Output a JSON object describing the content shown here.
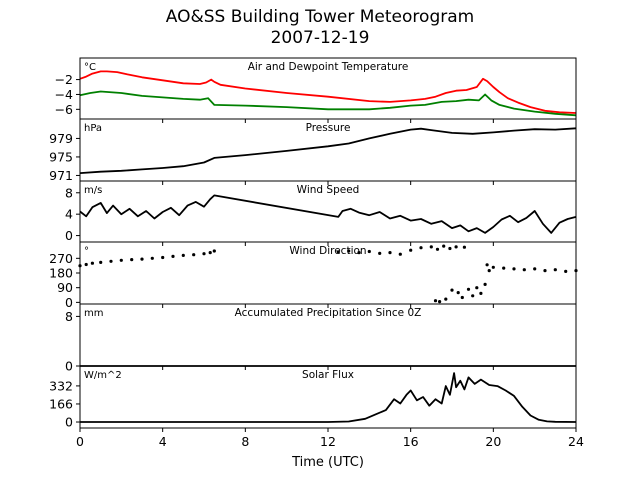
{
  "figure": {
    "title": "AO&SS Building Tower Meteorogram",
    "subtitle": "2007-12-19",
    "xlabel": "Time (UTC)"
  },
  "colors": {
    "air_temp": "#ff0000",
    "dewpoint": "#008000",
    "line": "#000000"
  },
  "chart_data": [
    {
      "type": "line",
      "title": "Air and Dewpoint Temperature",
      "ylabel": "°C",
      "xlim": [
        0,
        24
      ],
      "ylim": [
        -7.3,
        0.9
      ],
      "yticks": [
        -2,
        -4,
        -6
      ],
      "series": [
        {
          "color": "#ff0000",
          "x": [
            0,
            0.3,
            0.6,
            1.0,
            1.3,
            1.8,
            2.3,
            3,
            4,
            5,
            5.8,
            6.1,
            6.35,
            6.5,
            6.8,
            8,
            10,
            12,
            14,
            15,
            16,
            16.7,
            17.2,
            17.7,
            18.2,
            18.7,
            19.2,
            19.5,
            19.7,
            20.0,
            20.3,
            20.7,
            21.2,
            21.8,
            22.5,
            23.2,
            24
          ],
          "y": [
            -1.9,
            -1.6,
            -1.2,
            -0.9,
            -0.9,
            -1.0,
            -1.3,
            -1.7,
            -2.1,
            -2.5,
            -2.6,
            -2.4,
            -2.0,
            -2.3,
            -2.7,
            -3.2,
            -3.8,
            -4.3,
            -4.9,
            -5.0,
            -4.8,
            -4.6,
            -4.3,
            -3.8,
            -3.5,
            -3.4,
            -3.0,
            -1.9,
            -2.2,
            -3.0,
            -3.7,
            -4.5,
            -5.1,
            -5.7,
            -6.2,
            -6.4,
            -6.5
          ]
        },
        {
          "color": "#008000",
          "x": [
            0,
            0.5,
            1.0,
            2,
            3,
            4,
            5,
            5.8,
            6.2,
            6.5,
            8,
            10,
            12,
            14,
            15,
            16,
            16.7,
            17.5,
            18.2,
            18.8,
            19.3,
            19.6,
            19.9,
            20.3,
            21,
            22,
            23,
            24
          ],
          "y": [
            -4.1,
            -3.8,
            -3.6,
            -3.8,
            -4.2,
            -4.4,
            -4.6,
            -4.7,
            -4.5,
            -5.4,
            -5.5,
            -5.7,
            -6.0,
            -6.0,
            -5.8,
            -5.5,
            -5.4,
            -5.0,
            -4.9,
            -4.7,
            -4.8,
            -4.0,
            -4.8,
            -5.4,
            -5.9,
            -6.3,
            -6.6,
            -6.8
          ]
        }
      ]
    },
    {
      "type": "line",
      "title": "Pressure",
      "ylabel": "hPa",
      "xlim": [
        0,
        24
      ],
      "ylim": [
        969.8,
        983.2
      ],
      "yticks": [
        971,
        975,
        979
      ],
      "series": [
        {
          "color": "#000000",
          "x": [
            0,
            1,
            2,
            3,
            4,
            5,
            6,
            6.5,
            8,
            10,
            12,
            13,
            14,
            15,
            16,
            16.5,
            17,
            18,
            19,
            20,
            21,
            22,
            23,
            24
          ],
          "y": [
            971.5,
            971.8,
            972.0,
            972.3,
            972.6,
            973.0,
            973.8,
            974.8,
            975.4,
            976.3,
            977.3,
            977.9,
            979.0,
            980.0,
            980.9,
            981.1,
            980.8,
            980.2,
            980.0,
            980.3,
            980.7,
            981.0,
            980.9,
            981.2
          ]
        }
      ]
    },
    {
      "type": "line",
      "title": "Wind Speed",
      "ylabel": "m/s",
      "xlim": [
        0,
        24
      ],
      "ylim": [
        -1.2,
        10.2
      ],
      "yticks": [
        0,
        4,
        8
      ],
      "series": [
        {
          "color": "#000000",
          "x": [
            0,
            0.3,
            0.6,
            1.0,
            1.3,
            1.6,
            2.0,
            2.4,
            2.8,
            3.2,
            3.6,
            4.0,
            4.4,
            4.8,
            5.2,
            5.6,
            6.0,
            6.3,
            6.5,
            12.5,
            12.7,
            13.1,
            13.5,
            14.0,
            14.5,
            15.0,
            15.5,
            16.0,
            16.5,
            17.0,
            17.5,
            18.0,
            18.4,
            18.8,
            19.2,
            19.6,
            20.0,
            20.4,
            20.8,
            21.2,
            21.6,
            22.0,
            22.4,
            22.8,
            23.2,
            23.6,
            24
          ],
          "y": [
            4.5,
            3.6,
            5.3,
            6.1,
            4.2,
            5.6,
            4.0,
            5.0,
            3.6,
            4.6,
            3.2,
            4.4,
            5.2,
            3.8,
            5.6,
            6.3,
            5.4,
            6.8,
            7.5,
            3.5,
            4.6,
            5.0,
            4.3,
            3.8,
            4.4,
            3.2,
            3.7,
            2.8,
            3.1,
            2.2,
            2.7,
            1.4,
            1.9,
            0.8,
            1.4,
            0.5,
            1.6,
            3.0,
            3.7,
            2.5,
            3.3,
            4.6,
            2.2,
            0.5,
            2.4,
            3.1,
            3.5
          ]
        }
      ]
    },
    {
      "type": "scatter",
      "title": "Wind Direction",
      "ylabel": "°",
      "xlim": [
        0,
        24
      ],
      "ylim": [
        -10,
        370
      ],
      "yticks": [
        0,
        90,
        180,
        270
      ],
      "series": [
        {
          "color": "#000000",
          "x": [
            0,
            0.3,
            0.6,
            1.0,
            1.5,
            2.0,
            2.5,
            3.0,
            3.5,
            4.0,
            4.5,
            5.0,
            5.5,
            6.0,
            6.3,
            6.5,
            12.5,
            13.0,
            13.5,
            14.0,
            14.5,
            15.0,
            15.5,
            16.0,
            16.5,
            17.0,
            17.3,
            17.6,
            17.9,
            18.2,
            18.6,
            17.2,
            17.4,
            17.7,
            18.0,
            18.3,
            18.5,
            18.8,
            19.0,
            19.2,
            19.4,
            19.6,
            19.7,
            19.8,
            20.0,
            20.5,
            21.0,
            21.5,
            22.0,
            22.5,
            23.0,
            23.5,
            24
          ],
          "y": [
            225,
            232,
            240,
            245,
            252,
            258,
            262,
            265,
            270,
            275,
            282,
            288,
            292,
            298,
            305,
            315,
            310,
            315,
            305,
            312,
            300,
            305,
            295,
            320,
            335,
            340,
            325,
            345,
            330,
            340,
            338,
            10,
            5,
            20,
            75,
            60,
            30,
            80,
            40,
            90,
            55,
            110,
            230,
            195,
            215,
            210,
            205,
            200,
            205,
            195,
            200,
            190,
            195
          ]
        }
      ]
    },
    {
      "type": "line",
      "title": "Accumulated Precipitation Since 0Z",
      "ylabel": "mm",
      "xlim": [
        0,
        24
      ],
      "ylim": [
        0,
        10
      ],
      "yticks": [
        0,
        8
      ],
      "series": [
        {
          "color": "#000000",
          "x": [
            0,
            24
          ],
          "y": [
            0,
            0
          ]
        }
      ]
    },
    {
      "type": "line",
      "title": "Solar Flux",
      "ylabel": "W/m^2",
      "xlim": [
        0,
        24
      ],
      "ylim": [
        -55,
        515
      ],
      "yticks": [
        0,
        166,
        332
      ],
      "series": [
        {
          "color": "#000000",
          "x": [
            0,
            12,
            13.0,
            13.8,
            14.3,
            14.8,
            15.2,
            15.5,
            15.8,
            16.0,
            16.3,
            16.6,
            16.9,
            17.2,
            17.5,
            17.7,
            17.9,
            18.1,
            18.2,
            18.4,
            18.6,
            18.8,
            19.1,
            19.4,
            19.8,
            20.2,
            20.6,
            21.0,
            21.4,
            21.8,
            22.2,
            22.6,
            23.0,
            24
          ],
          "y": [
            0,
            0,
            5,
            30,
            70,
            110,
            210,
            170,
            250,
            290,
            200,
            230,
            150,
            210,
            170,
            330,
            250,
            450,
            320,
            380,
            300,
            410,
            350,
            390,
            340,
            330,
            290,
            240,
            140,
            60,
            20,
            6,
            2,
            0
          ]
        }
      ]
    }
  ],
  "x_axis": {
    "ticks": [
      0,
      4,
      8,
      12,
      16,
      20,
      24
    ]
  }
}
